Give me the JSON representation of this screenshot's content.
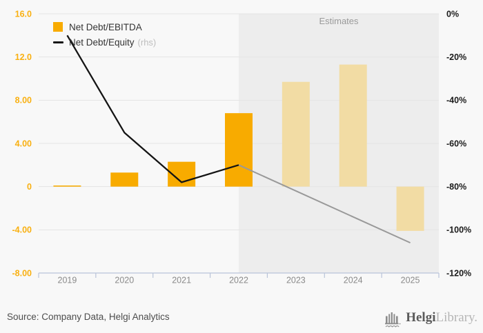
{
  "legend": {
    "items": [
      {
        "label": "Net Debt/EBITDA",
        "swatch": "bar"
      },
      {
        "label": "Net Debt/Equity",
        "suffix": "(rhs)",
        "swatch": "line"
      }
    ]
  },
  "estimates_label": "Estimates",
  "footer": {
    "source": "Source: Company Data, Helgi Analytics",
    "logo_brand": "Helgi",
    "logo_suffix": "Library."
  },
  "chart_data": {
    "type": "combo-bar-line",
    "title": "",
    "categories": [
      "2019",
      "2020",
      "2021",
      "2022",
      "2023",
      "2024",
      "2025"
    ],
    "series": [
      {
        "name": "Net Debt/EBITDA",
        "type": "bar",
        "axis": "left",
        "values": [
          0.1,
          1.3,
          2.3,
          6.8,
          9.7,
          11.3,
          -4.1
        ],
        "actual_color": "#F8AB00",
        "estimate_color": "#F2DCA4"
      },
      {
        "name": "Net Debt/Equity (rhs)",
        "type": "line",
        "axis": "right",
        "values": [
          -10,
          -55,
          -78,
          -70,
          -82,
          -94,
          -106
        ],
        "actual_color": "#141414",
        "estimate_color": "#999999"
      }
    ],
    "estimates_start_index": 3,
    "left_axis": {
      "range": [
        -8,
        16
      ],
      "ticks": [
        {
          "v": 16,
          "label": "16.0"
        },
        {
          "v": 12,
          "label": "12.0"
        },
        {
          "v": 8,
          "label": "8.00"
        },
        {
          "v": 4,
          "label": "4.00"
        },
        {
          "v": 0,
          "label": "0"
        },
        {
          "v": -4,
          "label": "-4.00"
        },
        {
          "v": -8,
          "label": "-8.00"
        }
      ],
      "color": "#F9B011"
    },
    "right_axis": {
      "range": [
        -120,
        0
      ],
      "ticks": [
        {
          "v": 0,
          "label": "0%"
        },
        {
          "v": -20,
          "label": "-20%"
        },
        {
          "v": -40,
          "label": "-40%"
        },
        {
          "v": -60,
          "label": "-60%"
        },
        {
          "v": -80,
          "label": "-80%"
        },
        {
          "v": -100,
          "label": "-100%"
        },
        {
          "v": -120,
          "label": "-120%"
        }
      ],
      "color": "#1A1A1A"
    },
    "x_axis": {
      "labels_color": "#8A8A8A"
    },
    "grid": true,
    "grid_color": "#E4E4E4",
    "axis_color": "#B9C3D9",
    "estimates_region_color": "#EDEDED",
    "background": "#F8F8F8"
  }
}
